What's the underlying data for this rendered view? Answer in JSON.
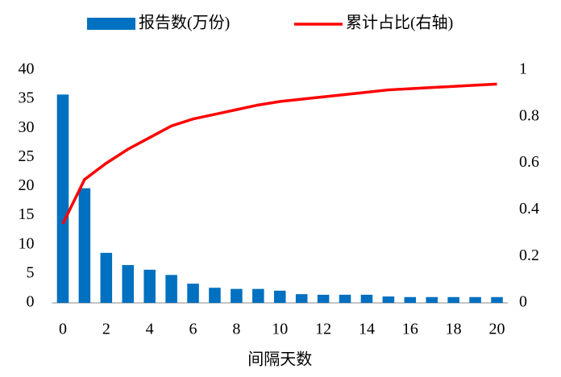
{
  "chart_data": {
    "type": "bar",
    "x_label": "间隔天数",
    "categories": [
      0,
      null,
      2,
      null,
      4,
      null,
      6,
      null,
      8,
      null,
      10,
      null,
      12,
      null,
      14,
      null,
      16,
      null,
      18,
      null,
      20
    ],
    "series": [
      {
        "name": "报告数(万份)",
        "type": "bar",
        "color": "#0070c0",
        "values": [
          35.8,
          19.7,
          8.6,
          6.5,
          5.7,
          4.8,
          3.3,
          2.6,
          2.4,
          2.4,
          2.1,
          1.5,
          1.4,
          1.4,
          1.4,
          1.1,
          1.0,
          1.0,
          1.0,
          1.0,
          1.0
        ]
      },
      {
        "name": "累计占比(右轴)",
        "type": "line",
        "axis": "y2",
        "color": "#ff0000",
        "values": [
          0.34,
          0.53,
          0.6,
          0.66,
          0.71,
          0.76,
          0.79,
          0.81,
          0.83,
          0.85,
          0.865,
          0.875,
          0.885,
          0.895,
          0.905,
          0.915,
          0.92,
          0.925,
          0.93,
          0.935,
          0.94
        ]
      }
    ],
    "ylim": [
      0,
      40
    ],
    "yticks": [
      0,
      5,
      10,
      15,
      20,
      25,
      30,
      35,
      40
    ],
    "y2lim": [
      0,
      1
    ],
    "y2ticks": [
      0,
      0.2,
      0.4,
      0.6,
      0.8,
      1
    ],
    "grid": false,
    "legend": "top"
  }
}
